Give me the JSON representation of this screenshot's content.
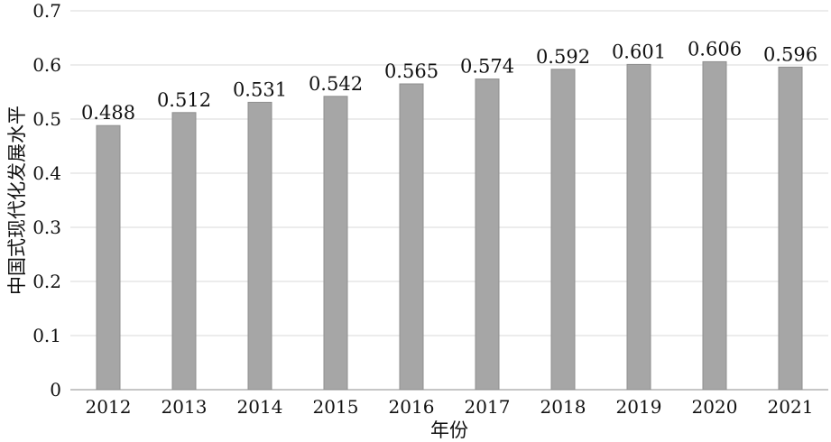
{
  "chart_data": {
    "type": "bar",
    "categories": [
      "2012",
      "2013",
      "2014",
      "2015",
      "2016",
      "2017",
      "2018",
      "2019",
      "2020",
      "2021"
    ],
    "values": [
      0.488,
      0.512,
      0.531,
      0.542,
      0.565,
      0.574,
      0.592,
      0.601,
      0.606,
      0.596
    ],
    "value_labels": [
      "0.488",
      "0.512",
      "0.531",
      "0.542",
      "0.565",
      "0.574",
      "0.592",
      "0.601",
      "0.606",
      "0.596"
    ],
    "title": "",
    "xlabel": "年份",
    "ylabel": "中国式现代化发展水平",
    "ylim": [
      0,
      0.7
    ],
    "yticks": [
      "0",
      "0.1",
      "0.2",
      "0.3",
      "0.4",
      "0.5",
      "0.6",
      "0.7"
    ],
    "grid": true,
    "legend": "none",
    "bar_color": "#a6a6a6"
  }
}
